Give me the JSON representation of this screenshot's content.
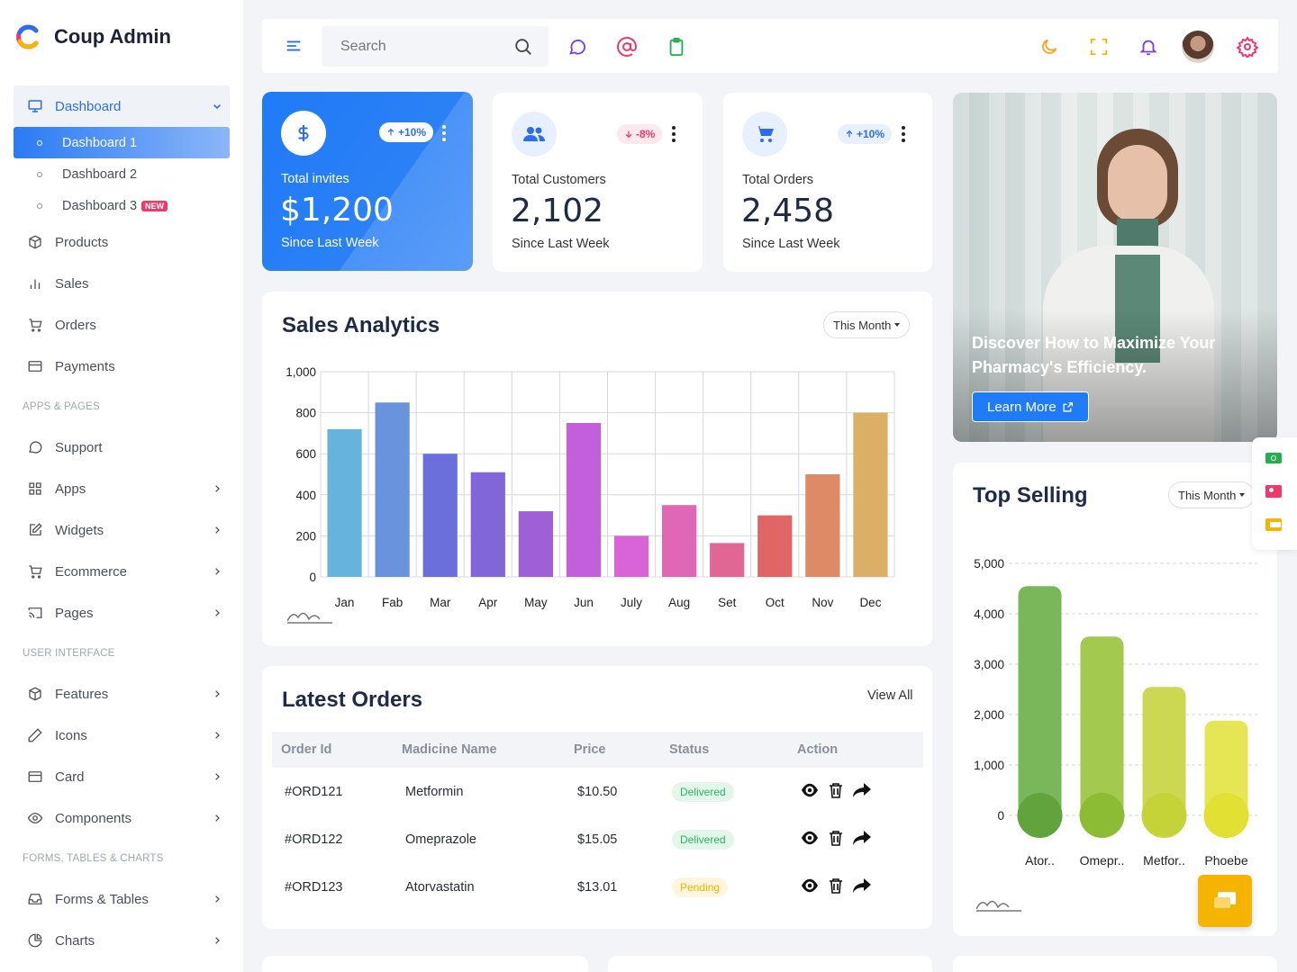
{
  "brand": {
    "name": "Coup Admin"
  },
  "sidebar": {
    "dashboard": {
      "label": "Dashboard",
      "children": [
        {
          "label": "Dashboard 1",
          "badge": ""
        },
        {
          "label": "Dashboard 2",
          "badge": ""
        },
        {
          "label": "Dashboard 3",
          "badge": "NEW"
        }
      ]
    },
    "main_items": [
      "Products",
      "Sales",
      "Orders",
      "Payments"
    ],
    "section_apps": "APPS & PAGES",
    "apps_items": [
      "Support",
      "Apps",
      "Widgets",
      "Ecommerce",
      "Pages"
    ],
    "section_ui": "USER INTERFACE",
    "ui_items": [
      "Features",
      "Icons",
      "Card",
      "Components"
    ],
    "section_forms": "FORMS, TABLES & CHARTS",
    "forms_items": [
      "Forms & Tables",
      "Charts"
    ]
  },
  "header": {
    "search_placeholder": "Search"
  },
  "stats": [
    {
      "title": "Total invites",
      "value": "$1,200",
      "sub": "Since Last Week",
      "change": "+10%",
      "direction": "up"
    },
    {
      "title": "Total Customers",
      "value": "2,102",
      "sub": "Since Last Week",
      "change": "-8%",
      "direction": "down"
    },
    {
      "title": "Total Orders",
      "value": "2,458",
      "sub": "Since Last Week",
      "change": "+10%",
      "direction": "up"
    }
  ],
  "promo": {
    "headline": "Discover How to Maximize Your Pharmacy's Efficiency.",
    "button": "Learn More"
  },
  "sales_analytics": {
    "title": "Sales Analytics",
    "filter": "This Month"
  },
  "top_selling": {
    "title": "Top Selling",
    "filter": "This Month"
  },
  "orders": {
    "title": "Latest Orders",
    "view_all": "View All",
    "columns": [
      "Order Id",
      "Madicine Name",
      "Price",
      "Status",
      "Action"
    ],
    "rows": [
      {
        "id": "#ORD121",
        "name": "Metformin",
        "price": "$10.50",
        "status": "Delivered"
      },
      {
        "id": "#ORD122",
        "name": "Omeprazole",
        "price": "$15.05",
        "status": "Delivered"
      },
      {
        "id": "#ORD123",
        "name": "Atorvastatin",
        "price": "$13.01",
        "status": "Pending"
      }
    ]
  },
  "colors": {
    "primary": "#2b6ef2",
    "accent": "#f0386b"
  },
  "chart_data": [
    {
      "type": "bar",
      "categories": [
        "Jan",
        "Fab",
        "Mar",
        "Apr",
        "May",
        "Jun",
        "July",
        "Aug",
        "Set",
        "Oct",
        "Nov",
        "Dec"
      ],
      "values": [
        720,
        850,
        600,
        510,
        320,
        750,
        200,
        350,
        165,
        300,
        500,
        800
      ],
      "ylim": [
        0,
        1000
      ],
      "yticks": [
        "0",
        "200",
        "400",
        "600",
        "800",
        "1,000"
      ],
      "colors": [
        "#66b3dd",
        "#6a93dd",
        "#6b6fdc",
        "#8066d9",
        "#9f5fd7",
        "#c45fdc",
        "#d864d8",
        "#e066b6",
        "#e06694",
        "#e06666",
        "#df8a66",
        "#dcaf66"
      ],
      "grid": true
    },
    {
      "type": "bar",
      "categories": [
        "Ator..",
        "Omepr..",
        "Metfor..",
        "Phoebe"
      ],
      "values": [
        4550,
        3550,
        2550,
        1880
      ],
      "ylim": [
        0,
        5000
      ],
      "yticks": [
        "0",
        "1,000",
        "2,000",
        "3,000",
        "4,000",
        "5,000"
      ],
      "colors": [
        "#7ab75a",
        "#a3c94f",
        "#ccd851",
        "#e6e655"
      ],
      "base_colors": [
        "#62a33e",
        "#8cbb34",
        "#c5d238",
        "#e2e033"
      ],
      "grid": true
    }
  ]
}
